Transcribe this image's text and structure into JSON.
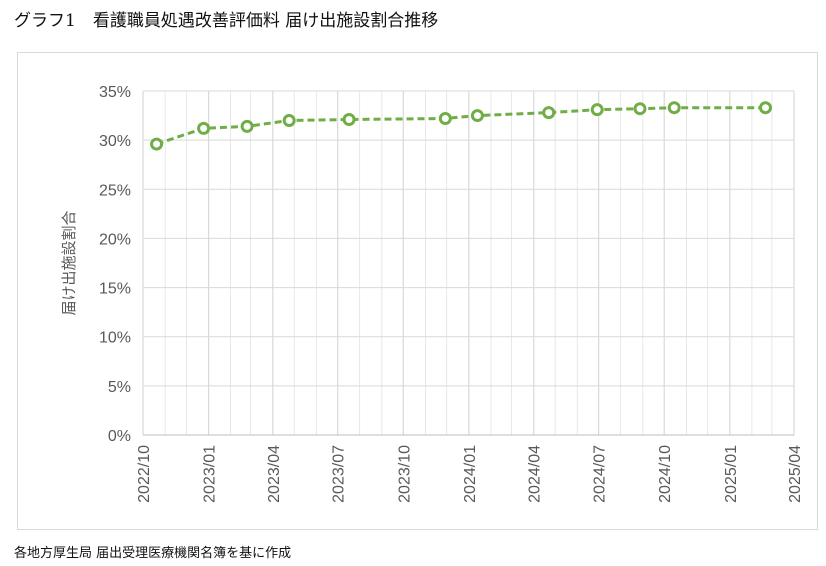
{
  "title": "グラフ1　看護職員処遇改善評価料 届け出施設割合推移",
  "source": "各地方厚生局 届出受理医療機関名簿を基に作成",
  "colors": {
    "line": "#70ad47",
    "grid": "#d9d9d9",
    "axis_text": "#595959",
    "marker_fill": "#ffffff"
  },
  "chart_data": {
    "type": "line",
    "title": "",
    "xlabel": "",
    "ylabel": "届け出施設割合",
    "ylim": [
      0,
      0.35
    ],
    "yticks": [
      0,
      0.05,
      0.1,
      0.15,
      0.2,
      0.25,
      0.3,
      0.35
    ],
    "ytick_labels": [
      "0%",
      "5%",
      "10%",
      "15%",
      "20%",
      "25%",
      "30%",
      "35%"
    ],
    "xlim": [
      "2022-10",
      "2025-04"
    ],
    "xtick_labels": [
      "2022/10",
      "2023/01",
      "2023/04",
      "2023/07",
      "2023/10",
      "2024/01",
      "2024/04",
      "2024/07",
      "2024/10",
      "2025/01",
      "2025/04"
    ],
    "grid": true,
    "legend": "none",
    "line_style": "dashed",
    "series": [
      {
        "dates": [
          "2022-10-20",
          "2022-12-25",
          "2023-02-24",
          "2023-04-24",
          "2023-07-17",
          "2023-11-29",
          "2024-01-13",
          "2024-04-22",
          "2024-06-29",
          "2024-08-28",
          "2024-10-15",
          "2025-02-20"
        ],
        "values": [
          0.296,
          0.312,
          0.314,
          0.32,
          0.321,
          0.322,
          0.325,
          0.328,
          0.331,
          0.332,
          0.333,
          0.333
        ]
      }
    ]
  }
}
